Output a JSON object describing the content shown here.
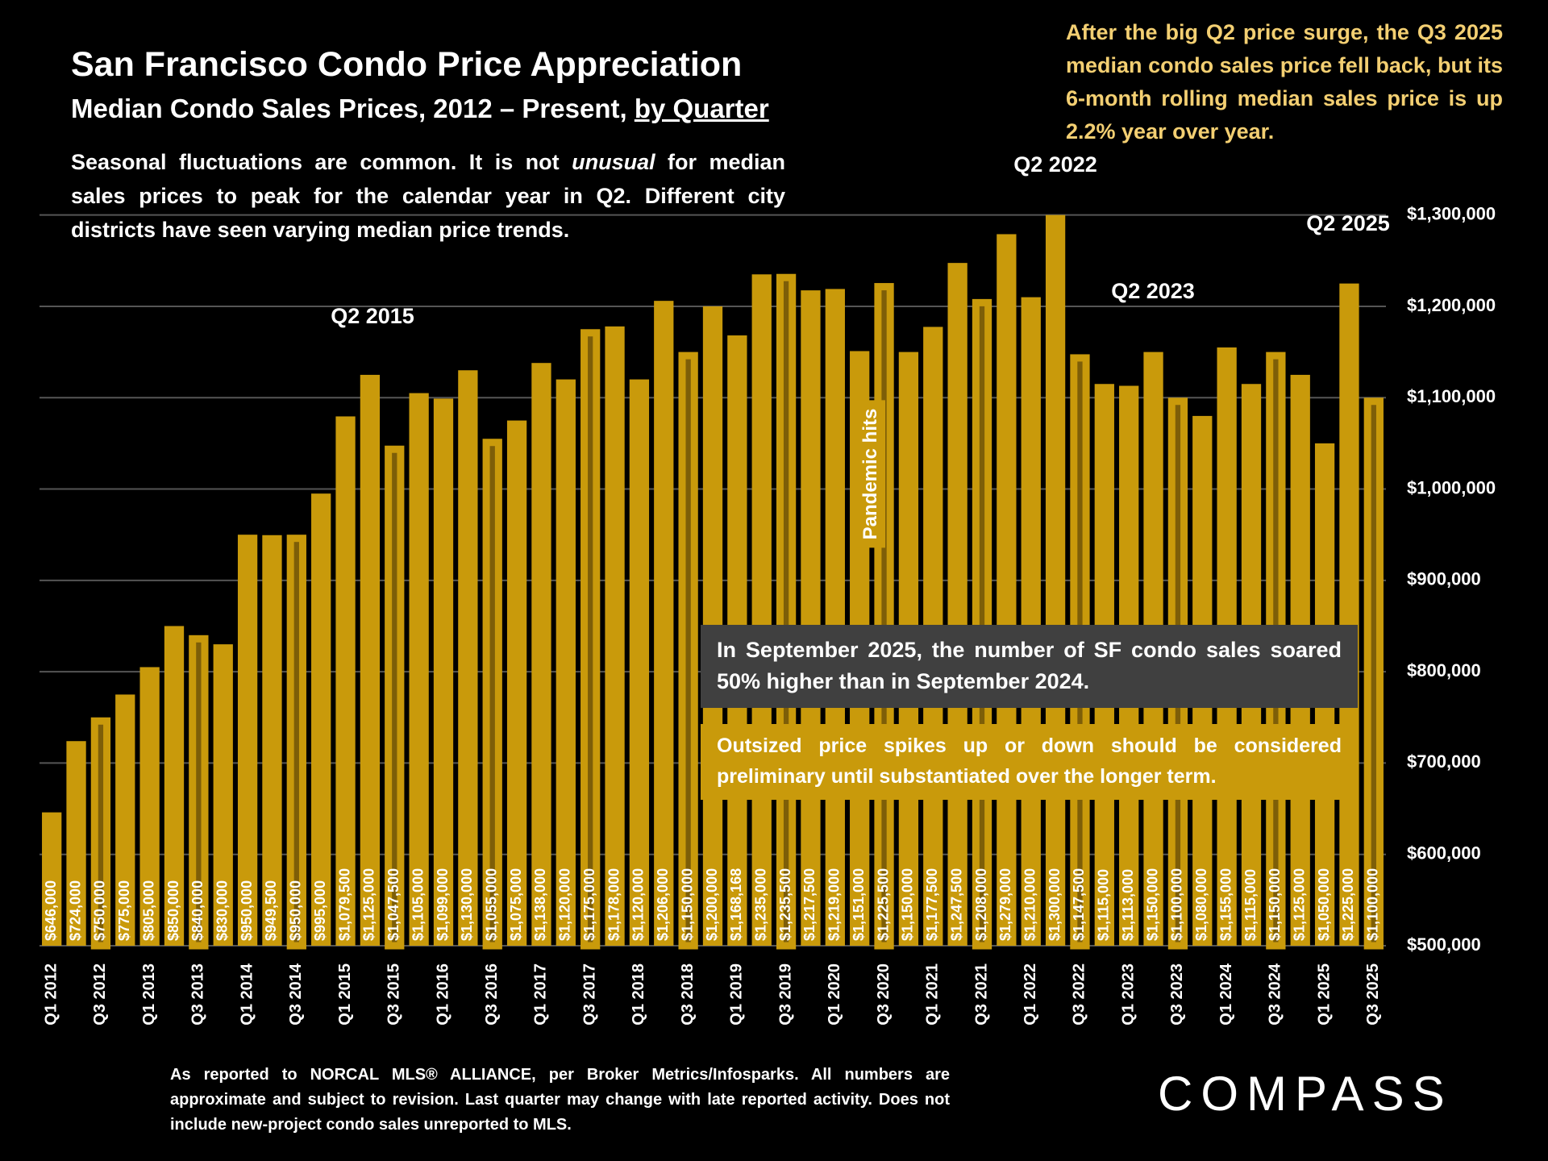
{
  "chart_data": {
    "type": "bar",
    "title": "San Francisco Condo Price Appreciation",
    "subtitle": "Median Condo Sales Prices, 2012 – Present,",
    "subtitle_underlined": "by Quarter",
    "note": [
      "Seasonal fluctuations are common. It is not",
      "unusual",
      "for median sales prices to peak for the calendar year in Q2. Different city districts have seen varying median price trends."
    ],
    "callout_top": "After the big Q2 price surge, the Q3 2025 median condo sales price fell back, but its 6-month rolling median sales price is up 2.2% year over year.",
    "callout_gray": "In September 2025, the number of SF condo sales soared 50% higher than in September 2024.",
    "callout_gold": "Outsized price spikes up or down should be considered preliminary until substantiated over the longer term.",
    "annotations": [
      "Q2 2015",
      "Q2 2022",
      "Q2 2023",
      "Q2 2025",
      "Pandemic hits"
    ],
    "footnote": "As reported to NORCAL MLS® ALLIANCE, per Broker Metrics/Infosparks. All numbers are approximate and subject to revision. Last quarter may change with late reported activity. Does not include new-project condo sales unreported to MLS.",
    "logo": "COMPASS",
    "color": "#c99a0b",
    "highlight_color": "#7d5e08",
    "grid": true,
    "categories": [
      "Q1 2012",
      null,
      "Q3 2012",
      null,
      "Q1 2013",
      null,
      "Q3 2013",
      null,
      "Q1 2014",
      null,
      "Q3 2014",
      null,
      "Q1 2015",
      null,
      "Q3 2015",
      null,
      "Q1 2016",
      null,
      "Q3 2016",
      null,
      "Q1 2017",
      null,
      "Q3 2017",
      null,
      "Q1 2018",
      null,
      "Q3 2018",
      null,
      "Q1 2019",
      null,
      "Q3 2019",
      null,
      "Q1 2020",
      null,
      "Q3 2020",
      null,
      "Q1 2021",
      null,
      "Q3 2021",
      null,
      "Q1 2022",
      null,
      "Q3 2022",
      null,
      "Q1 2023",
      null,
      "Q3 2023",
      null,
      "Q1 2024",
      null,
      "Q3 2024",
      null,
      "Q1 2025",
      null,
      "Q3 2025"
    ],
    "values": [
      646000,
      724000,
      750000,
      775000,
      805000,
      850000,
      840000,
      830000,
      950000,
      949500,
      950000,
      995000,
      1079500,
      1125000,
      1047500,
      1105000,
      1099000,
      1130000,
      1055000,
      1075000,
      1138000,
      1120000,
      1175000,
      1178000,
      1120000,
      1206000,
      1150000,
      1200000,
      1168168,
      1235000,
      1235500,
      1217500,
      1219000,
      1151000,
      1225500,
      1150000,
      1177500,
      1247500,
      1208000,
      1279000,
      1210000,
      1300000,
      1147500,
      1115000,
      1113000,
      1150000,
      1100000,
      1080000,
      1155000,
      1115000,
      1150000,
      1125000,
      1050000,
      1225000,
      1100000
    ],
    "value_labels": [
      "$646,000",
      "$724,000",
      "$750,000",
      "$775,000",
      "$805,000",
      "$850,000",
      "$840,000",
      "$830,000",
      "$950,000",
      "$949,500",
      "$950,000",
      "$995,000",
      "$1,079,500",
      "$1,125,000",
      "$1,047,500",
      "$1,105,000",
      "$1,099,000",
      "$1,130,000",
      "$1,055,000",
      "$1,075,000",
      "$1,138,000",
      "$1,120,000",
      "$1,175,000",
      "$1,178,000",
      "$1,120,000",
      "$1,206,000",
      "$1,150,000",
      "$1,200,000",
      "$1,168,168",
      "$1,235,000",
      "$1,235,500",
      "$1,217,500",
      "$1,219,000",
      "$1,151,000",
      "$1,225,500",
      "$1,150,000",
      "$1,177,500",
      "$1,247,500",
      "$1,208,000",
      "$1,279,000",
      "$1,210,000",
      "$1,300,000",
      "$1,147,500",
      "$1,115,000",
      "$1,113,000",
      "$1,150,000",
      "$1,100,000",
      "$1,080,000",
      "$1,155,000",
      "$1,115,000",
      "$1,150,000",
      "$1,125,000",
      "$1,050,000",
      "$1,225,000",
      "$1,100,000"
    ],
    "ylim": [
      500000,
      1320000
    ],
    "yticks": [
      {
        "value": 500000,
        "label": "$500,000"
      },
      {
        "value": 600000,
        "label": "$600,000"
      },
      {
        "value": 700000,
        "label": "$700,000"
      },
      {
        "value": 800000,
        "label": "$800,000"
      },
      {
        "value": 900000,
        "label": "$900,000"
      },
      {
        "value": 1000000,
        "label": "$1,000,000"
      },
      {
        "value": 1100000,
        "label": "$1,100,000"
      },
      {
        "value": 1200000,
        "label": "$1,200,000"
      },
      {
        "value": 1300000,
        "label": "$1,300,000"
      }
    ]
  }
}
